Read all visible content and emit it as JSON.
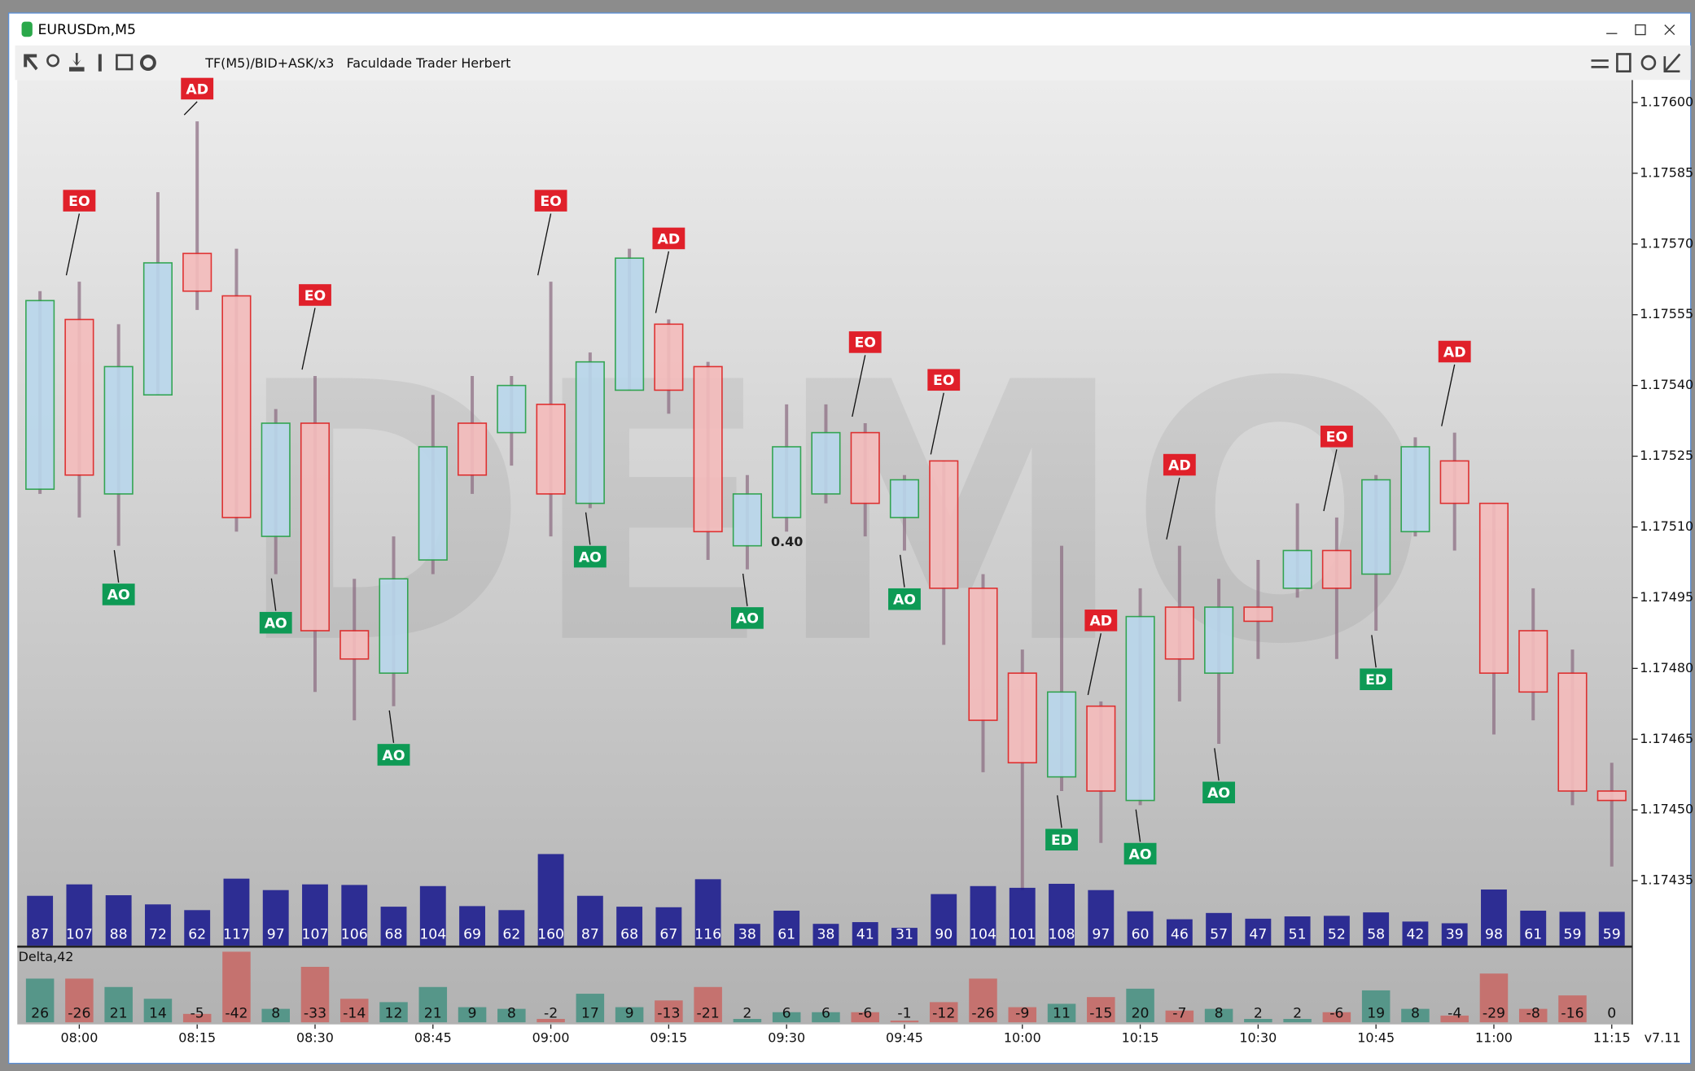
{
  "window": {
    "title": "EURUSDm,M5",
    "toolbar_text": "TF(M5)/BID+ASK/x3   Faculdade Trader Herbert",
    "version": "v7.11"
  },
  "chart_data": {
    "type": "footprint",
    "watermark": "DEMO",
    "categories": [
      null,
      "08:00",
      null,
      null,
      "08:15",
      null,
      null,
      "08:30",
      null,
      null,
      "08:45",
      null,
      null,
      "09:00",
      null,
      null,
      "09:15",
      null,
      null,
      "09:30",
      null,
      null,
      "09:45",
      null,
      null,
      "10:00",
      null,
      null,
      "10:15",
      null,
      null,
      "10:30",
      null,
      null,
      "10:45",
      null,
      null,
      "11:00",
      null,
      null,
      "11:15"
    ],
    "open": [
      1.17518,
      1.17554,
      1.17517,
      1.17538,
      1.17568,
      1.17559,
      1.17508,
      1.17532,
      1.17488,
      1.17479,
      1.17503,
      1.17532,
      1.1753,
      1.17536,
      1.17515,
      1.17539,
      1.17553,
      1.17544,
      1.17506,
      1.17512,
      1.17517,
      1.1753,
      1.17512,
      1.17524,
      1.17497,
      1.17479,
      1.17457,
      1.17472,
      1.17452,
      1.17493,
      1.17479,
      1.17493,
      1.17497,
      1.17505,
      1.175,
      1.17509,
      1.17524,
      1.17515,
      1.17488,
      1.17479,
      1.17454
    ],
    "high": [
      1.1756,
      1.17562,
      1.17553,
      1.17581,
      1.17596,
      1.17569,
      1.17535,
      1.17542,
      1.17499,
      1.17508,
      1.17538,
      1.17542,
      1.17542,
      1.17562,
      1.17547,
      1.17569,
      1.17554,
      1.17545,
      1.17521,
      1.17536,
      1.17536,
      1.17532,
      1.17521,
      1.17524,
      1.175,
      1.17484,
      1.17506,
      1.17473,
      1.17497,
      1.17506,
      1.17499,
      1.17503,
      1.17515,
      1.17512,
      1.17521,
      1.17529,
      1.1753,
      1.17515,
      1.17497,
      1.17484,
      1.1746
    ],
    "low": [
      1.17517,
      1.17512,
      1.17506,
      1.17538,
      1.17556,
      1.17509,
      1.175,
      1.17475,
      1.17469,
      1.17472,
      1.175,
      1.17517,
      1.17523,
      1.17508,
      1.17514,
      1.17539,
      1.17534,
      1.17503,
      1.17501,
      1.17509,
      1.17515,
      1.17508,
      1.17505,
      1.17485,
      1.17458,
      1.17433,
      1.17454,
      1.17443,
      1.17451,
      1.17473,
      1.17464,
      1.17482,
      1.17495,
      1.17482,
      1.17488,
      1.17508,
      1.17505,
      1.17466,
      1.17469,
      1.17451,
      1.17438
    ],
    "close": [
      1.17558,
      1.17521,
      1.17544,
      1.17566,
      1.1756,
      1.17512,
      1.17532,
      1.17488,
      1.17482,
      1.17499,
      1.17527,
      1.17521,
      1.1754,
      1.17517,
      1.17545,
      1.17567,
      1.17539,
      1.17509,
      1.17517,
      1.17527,
      1.1753,
      1.17515,
      1.1752,
      1.17497,
      1.17469,
      1.1746,
      1.17475,
      1.17454,
      1.17491,
      1.17482,
      1.17493,
      1.1749,
      1.17505,
      1.17497,
      1.1752,
      1.17527,
      1.17515,
      1.17479,
      1.17475,
      1.17454,
      1.17452
    ],
    "bull_color": "#22a045",
    "bear_color": "#e02020",
    "ylim": [
      1.17421,
      1.17605
    ],
    "yticks": [
      {
        "value": 1.176,
        "label": "1.17600"
      },
      1.17585,
      {
        "value": 1.1757,
        "label": "1.17570"
      },
      1.17555,
      {
        "value": 1.1754,
        "label": "1.17540"
      },
      1.17525,
      {
        "value": 1.1751,
        "label": "1.17510"
      },
      1.17495,
      {
        "value": 1.1748,
        "label": "1.17480"
      },
      1.17465,
      {
        "value": 1.1745,
        "label": "1.17450"
      },
      1.17435
    ],
    "signals_above": [
      null,
      "EO",
      null,
      null,
      "AD",
      null,
      null,
      "EO",
      null,
      null,
      null,
      null,
      null,
      "EO",
      null,
      null,
      "AD",
      null,
      null,
      null,
      null,
      "EO",
      null,
      "EO",
      null,
      null,
      null,
      "AD",
      null,
      "AD",
      null,
      null,
      null,
      "EO",
      null,
      null,
      "AD",
      null,
      null,
      null,
      null
    ],
    "signals_below": [
      null,
      null,
      "AO",
      null,
      null,
      null,
      "AO",
      null,
      null,
      "AO",
      null,
      null,
      null,
      null,
      "AO",
      null,
      null,
      null,
      "AO",
      null,
      null,
      null,
      "AO",
      null,
      null,
      null,
      "ED",
      null,
      "AO",
      null,
      "AO",
      null,
      null,
      null,
      "ED",
      null,
      null,
      null,
      null,
      null,
      null
    ],
    "signal_above_color": "#e0202a",
    "signal_below_color": "#0e9a55",
    "notes": [
      "0.40"
    ],
    "volume": [
      87,
      107,
      88,
      72,
      62,
      117,
      97,
      107,
      106,
      68,
      104,
      69,
      62,
      160,
      87,
      68,
      67,
      116,
      38,
      61,
      38,
      41,
      31,
      90,
      104,
      101,
      108,
      97,
      60,
      46,
      57,
      47,
      51,
      52,
      58,
      42,
      39,
      98,
      61,
      59,
      59
    ],
    "volume_lim": [
      0,
      170
    ],
    "volume_color": "#14148c",
    "delta_title": "Delta,42",
    "delta": [
      26,
      -26,
      21,
      14,
      -5,
      -42,
      8,
      -33,
      -14,
      12,
      21,
      9,
      8,
      -2,
      17,
      9,
      -13,
      -21,
      2,
      6,
      6,
      -6,
      -1,
      -12,
      -26,
      -9,
      11,
      -15,
      20,
      -7,
      8,
      2,
      2,
      -6,
      19,
      8,
      -4,
      -29,
      -8,
      -16,
      0
    ],
    "delta_lim": [
      0,
      45
    ],
    "delta_up_color": "#3f8f7e",
    "delta_down_color": "#c9625e"
  }
}
